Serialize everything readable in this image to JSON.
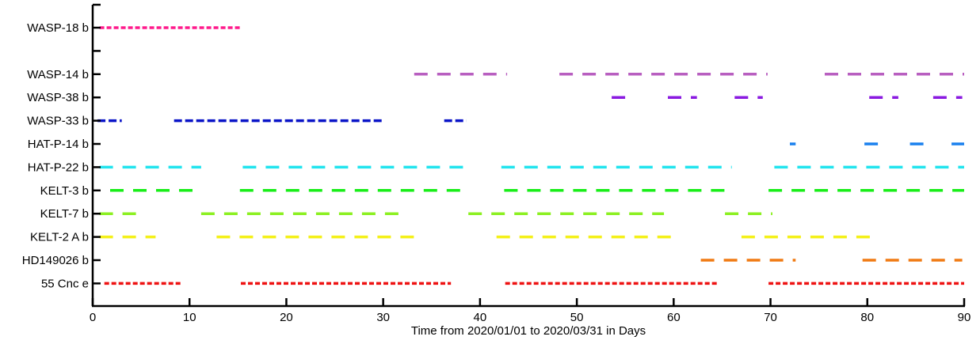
{
  "chart_data": {
    "type": "bar",
    "xlabel": "Time from 2020/01/01 to 2020/03/31 in Days",
    "ylabel": "",
    "xlim": [
      0,
      90
    ],
    "xticks": [
      0,
      10,
      20,
      30,
      40,
      50,
      60,
      70,
      80,
      90
    ],
    "grid": false,
    "rows": [
      "WASP-18 b",
      "",
      "WASP-14 b",
      "WASP-38 b",
      "WASP-33 b",
      "HAT-P-14 b",
      "HAT-P-22 b",
      "KELT-3 b",
      "KELT-7 b",
      "KELT-2 A b",
      "HD149026 b",
      "55 Cnc e"
    ],
    "series": [
      {
        "label": "WASP-18 b",
        "row": 0,
        "color": "#ff1a8c",
        "dash": "fine",
        "segments": [
          [
            0.7,
            15.3
          ]
        ]
      },
      {
        "label": "WASP-14 b",
        "row": 2,
        "color": "#b85fc0",
        "dash": "long",
        "segments": [
          [
            33.2,
            42.8
          ],
          [
            48.2,
            69.7
          ],
          [
            75.6,
            90
          ]
        ]
      },
      {
        "label": "WASP-38 b",
        "row": 3,
        "color": "#8a1ae0",
        "dash": "long",
        "segments": [
          [
            53.6,
            55.4
          ],
          [
            59.4,
            62.4
          ],
          [
            66.3,
            69.2
          ],
          [
            80.2,
            83.2
          ],
          [
            86.8,
            89.8
          ]
        ]
      },
      {
        "label": "WASP-33 b",
        "row": 4,
        "color": "#0a14c8",
        "dash": "mid",
        "segments": [
          [
            0.5,
            3.0
          ],
          [
            8.4,
            30.0
          ],
          [
            36.3,
            38.6
          ]
        ]
      },
      {
        "label": "HAT-P-14 b",
        "row": 5,
        "color": "#1a80ee",
        "dash": "long",
        "segments": [
          [
            72.0,
            72.6
          ],
          [
            79.7,
            81.8
          ],
          [
            84.4,
            86.4
          ],
          [
            88.7,
            90.0
          ]
        ]
      },
      {
        "label": "HAT-P-22 b",
        "row": 6,
        "color": "#22e4ee",
        "dash": "long",
        "segments": [
          [
            0.7,
            11.2
          ],
          [
            15.5,
            38.8
          ],
          [
            42.2,
            66.0
          ],
          [
            70.4,
            90.0
          ]
        ]
      },
      {
        "label": "KELT-3 b",
        "row": 7,
        "color": "#18ee18",
        "dash": "long",
        "segments": [
          [
            1.8,
            10.7
          ],
          [
            15.2,
            38.0
          ],
          [
            42.5,
            65.7
          ],
          [
            69.8,
            90.0
          ]
        ]
      },
      {
        "label": "KELT-7 b",
        "row": 8,
        "color": "#8cf022",
        "dash": "long",
        "segments": [
          [
            0.7,
            4.5
          ],
          [
            11.2,
            31.6
          ],
          [
            38.8,
            59.0
          ],
          [
            65.3,
            70.2
          ]
        ]
      },
      {
        "label": "KELT-2 A b",
        "row": 9,
        "color": "#f4f018",
        "dash": "long",
        "segments": [
          [
            0.7,
            6.5
          ],
          [
            12.8,
            33.8
          ],
          [
            41.7,
            60.3
          ],
          [
            67.0,
            81.0
          ]
        ]
      },
      {
        "label": "HD149026 b",
        "row": 10,
        "color": "#f07a12",
        "dash": "long",
        "segments": [
          [
            62.8,
            72.6
          ],
          [
            79.5,
            89.8
          ]
        ]
      },
      {
        "label": "55 Cnc e",
        "row": 11,
        "color": "#ee1212",
        "dash": "fine",
        "segments": [
          [
            1.2,
            9.2
          ],
          [
            15.3,
            37.0
          ],
          [
            42.6,
            64.5
          ],
          [
            69.8,
            90.0
          ]
        ]
      }
    ]
  }
}
